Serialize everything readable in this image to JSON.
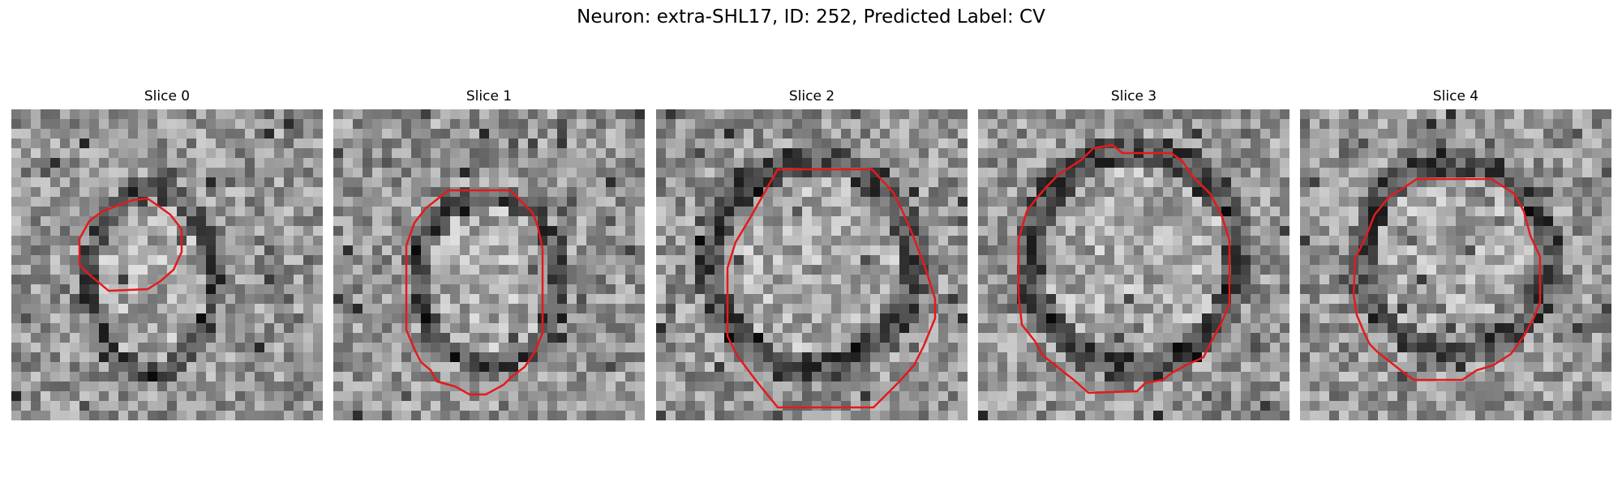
{
  "figure": {
    "title": "Neuron: extra-SHL17, ID: 252, Predicted Label: CV"
  },
  "panels": [
    {
      "title": "Slice 0",
      "contour": {
        "shape": "small-octagon",
        "color": "#e41a1c"
      }
    },
    {
      "title": "Slice 1",
      "contour": {
        "shape": "medium-octagon",
        "color": "#e41a1c"
      }
    },
    {
      "title": "Slice 2",
      "contour": {
        "shape": "large-octagon",
        "color": "#e41a1c"
      }
    },
    {
      "title": "Slice 3",
      "contour": {
        "shape": "large-octagon",
        "color": "#e41a1c"
      }
    },
    {
      "title": "Slice 4",
      "contour": {
        "shape": "medium-octagon",
        "color": "#e41a1c"
      }
    }
  ],
  "style": {
    "colormap": "grayscale",
    "contour_color": "#e41a1c"
  }
}
